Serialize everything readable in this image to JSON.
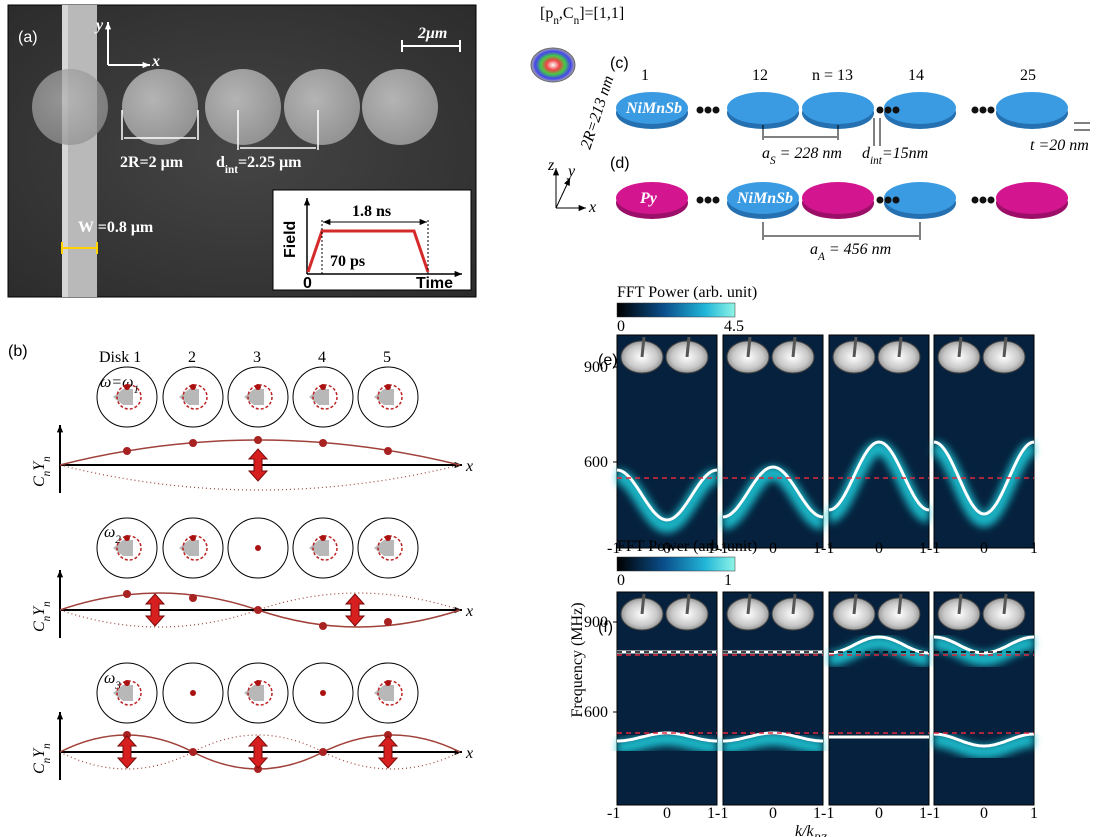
{
  "panel_a": {
    "label": "(a)",
    "axis_y": "y",
    "axis_x": "x",
    "scale_bar": "2μm",
    "diameter": "2R=2 μm",
    "spacing": [
      "d",
      "int",
      "=2.25 μm"
    ],
    "wire_width": "W =0.8 μm",
    "pulse": {
      "y_label": "Field",
      "duration": "1.8 ns",
      "rise": "70 ps",
      "origin": "0",
      "x_label": "Time"
    }
  },
  "panel_b": {
    "label": "(b)",
    "disks": [
      "Disk 1",
      "2",
      "3",
      "4",
      "5"
    ],
    "modes": [
      [
        "ω=ω",
        "1"
      ],
      [
        "ω",
        "2"
      ],
      [
        "ω",
        "3"
      ]
    ],
    "amplitude_label": [
      "C",
      "n",
      "Y",
      "n"
    ],
    "x_label": "x"
  },
  "topology": [
    "[p",
    "n",
    ",C",
    "n",
    "]=[1,1]"
  ],
  "panel_c": {
    "label": "(c)",
    "indices": [
      "1",
      "12",
      "n = 13",
      "14",
      "25"
    ],
    "radius": "2R=213 nm",
    "material": "NiMnSb",
    "lattice": [
      "a",
      "S",
      " = 228 nm"
    ],
    "gap": [
      "d",
      "int",
      "=15nm"
    ],
    "thickness": "t =20 nm"
  },
  "panel_d": {
    "label": "(d)",
    "materials": [
      "Py",
      "NiMnSb"
    ],
    "lattice": [
      "a",
      "A",
      " = 456 nm"
    ],
    "axes": [
      "z",
      "y",
      "x"
    ]
  },
  "panel_e": {
    "label": "(e)",
    "colorbar": {
      "title": "FFT Power (arb. unit)",
      "min": "0",
      "max": "4.5"
    },
    "yticks": [
      "900",
      "600"
    ]
  },
  "panel_f": {
    "label": "(f)",
    "colorbar": {
      "title": "FFT Power (arb. unit)",
      "min": "0",
      "max": "1"
    },
    "yticks": [
      "900",
      "600"
    ]
  },
  "y_label": "Frequency (MHz)",
  "x_label": [
    "k/k",
    "BZ"
  ],
  "xticks": [
    "-1",
    "0",
    "1-1",
    "0",
    "1-1",
    "0",
    "1-1",
    "0",
    "1"
  ]
}
